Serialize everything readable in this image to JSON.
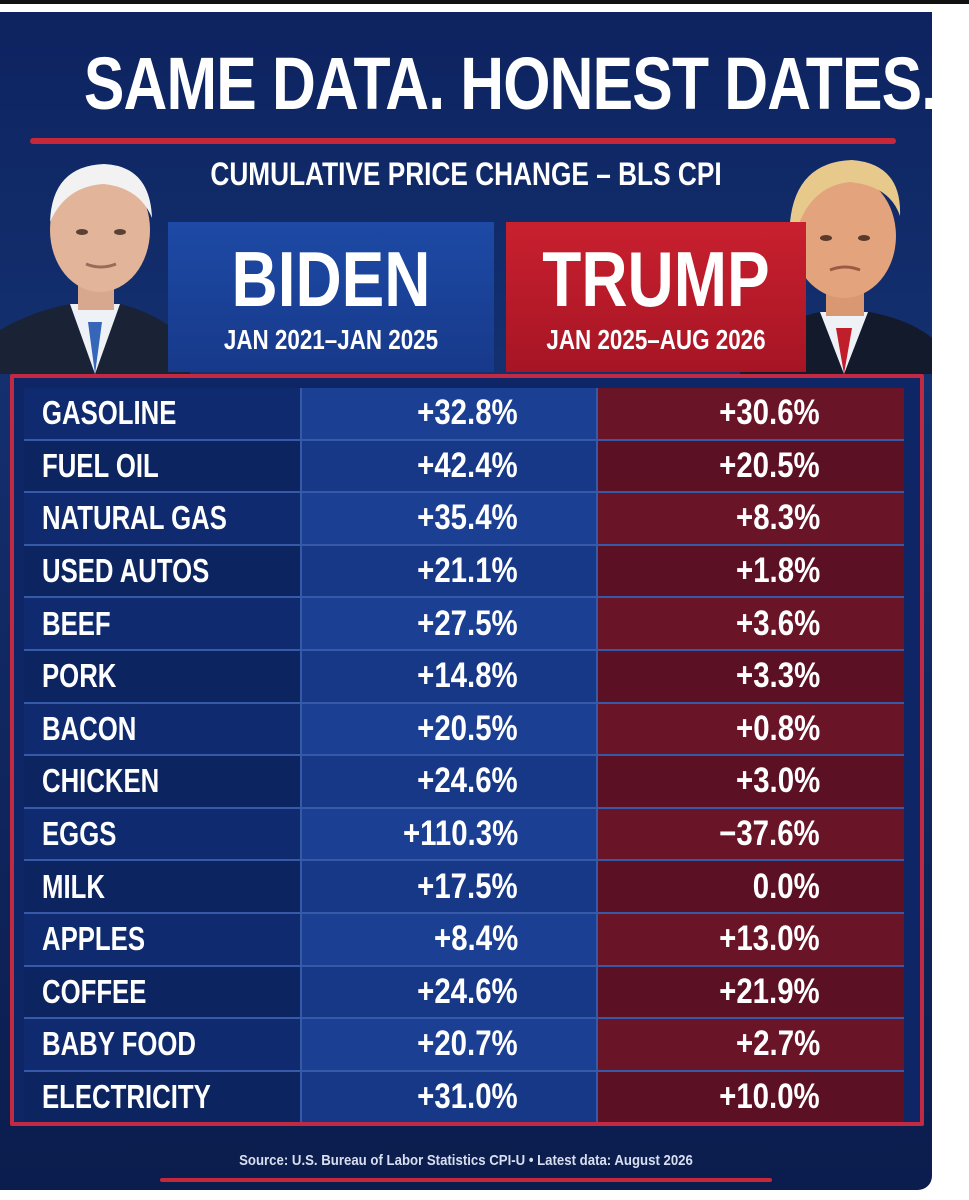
{
  "title": "SAME DATA. HONEST DATES.",
  "subtitle": "CUMULATIVE PRICE CHANGE – BLS CPI",
  "colors": {
    "background": "#13306f",
    "biden_panel": "#1d4aa6",
    "trump_panel": "#c9202f",
    "accent_rule": "#c6283a",
    "biden_column": "#1b3f92",
    "trump_column": "#6a1428"
  },
  "chart_data": {
    "type": "table",
    "series": [
      {
        "name": "BIDEN",
        "period": "JAN 2021–JAN 2025",
        "values": [
          "+32.8%",
          "+42.4%",
          "+35.4%",
          "+21.1%",
          "+27.5%",
          "+14.8%",
          "+20.5%",
          "+24.6%",
          "+110.3%",
          "+17.5%",
          "+8.4%",
          "+24.6%",
          "+20.7%",
          "+31.0%"
        ]
      },
      {
        "name": "TRUMP",
        "period": "JAN 2025–AUG 2026",
        "values": [
          "+30.6%",
          "+20.5%",
          "+8.3%",
          "+1.8%",
          "+3.6%",
          "+3.3%",
          "+0.8%",
          "+3.0%",
          "−37.6%",
          "0.0%",
          "+13.0%",
          "+21.9%",
          "+2.7%",
          "+10.0%"
        ]
      }
    ],
    "categories": [
      "GASOLINE",
      "FUEL OIL",
      "NATURAL GAS",
      "USED AUTOS",
      "BEEF",
      "PORK",
      "BACON",
      "CHICKEN",
      "EGGS",
      "MILK",
      "APPLES",
      "COFFEE",
      "BABY FOOD",
      "ELECTRICITY"
    ]
  },
  "source": "Source: U.S. Bureau of Labor Statistics CPI-U • Latest data: August 2026"
}
